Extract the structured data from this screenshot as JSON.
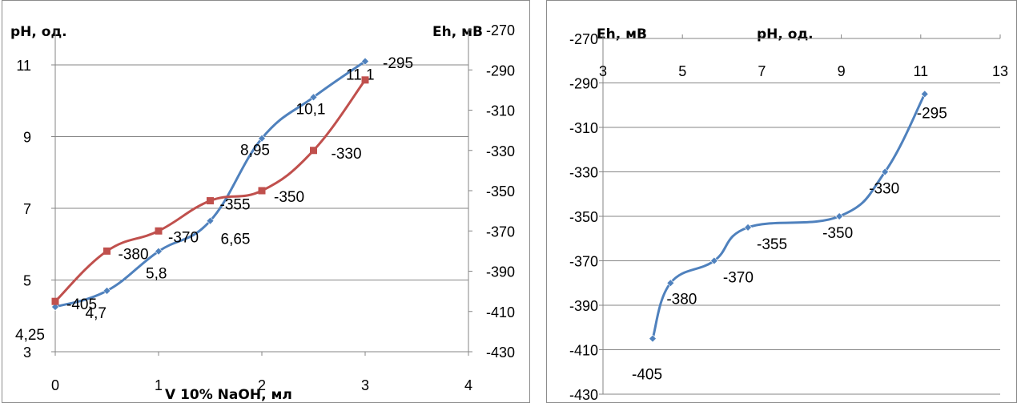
{
  "chart_data": [
    {
      "type": "line",
      "x": [
        0,
        0.5,
        1,
        1.5,
        2,
        2.5,
        3
      ],
      "xlabel": "V 10% NaOH, мл",
      "xlim": [
        0,
        4
      ],
      "x_ticks": [
        "0",
        "1",
        "2",
        "3",
        "4"
      ],
      "ylabel": "pH, од.",
      "ylim": [
        3,
        12
      ],
      "y_ticks": [
        "3",
        "5",
        "7",
        "9",
        "11"
      ],
      "y2label": "Eh, мВ",
      "y2lim": [
        -430,
        -270
      ],
      "y2_ticks": [
        "-270",
        "-290",
        "-310",
        "-330",
        "-350",
        "-370",
        "-390",
        "-410",
        "-430"
      ],
      "grid": true,
      "series": [
        {
          "axis": "left",
          "color": "#4f81bd",
          "marker": "diamond",
          "values": [
            4.25,
            4.7,
            5.8,
            6.65,
            8.95,
            10.1,
            11.1
          ],
          "labels": [
            "4,25",
            "4,7",
            "5,8",
            "6,65",
            "8,95",
            "10,1",
            "11,1"
          ]
        },
        {
          "axis": "right",
          "color": "#c0504d",
          "marker": "square",
          "values": [
            -405,
            -380,
            -370,
            -355,
            -350,
            -330,
            -295
          ],
          "labels": [
            "-405",
            "-380",
            "-370",
            "-355",
            "-350",
            "-330",
            "-295"
          ]
        }
      ]
    },
    {
      "type": "scatter",
      "xlabel": "pH, од.",
      "xlim": [
        3,
        13
      ],
      "x_ticks": [
        "3",
        "5",
        "7",
        "9",
        "11",
        "13"
      ],
      "ylabel": "Eh, мВ",
      "ylim": [
        -430,
        -270
      ],
      "y_ticks": [
        "-270",
        "-290",
        "-310",
        "-330",
        "-350",
        "-370",
        "-390",
        "-410",
        "-430"
      ],
      "grid": true,
      "series": [
        {
          "color": "#4f81bd",
          "marker": "diamond",
          "x": [
            4.25,
            4.7,
            5.8,
            6.65,
            8.95,
            10.1,
            11.1
          ],
          "values": [
            -405,
            -380,
            -370,
            -355,
            -350,
            -330,
            -295
          ],
          "labels": [
            "-405",
            "-380",
            "-370",
            "-355",
            "-350",
            "-330",
            "-295"
          ]
        }
      ]
    }
  ]
}
